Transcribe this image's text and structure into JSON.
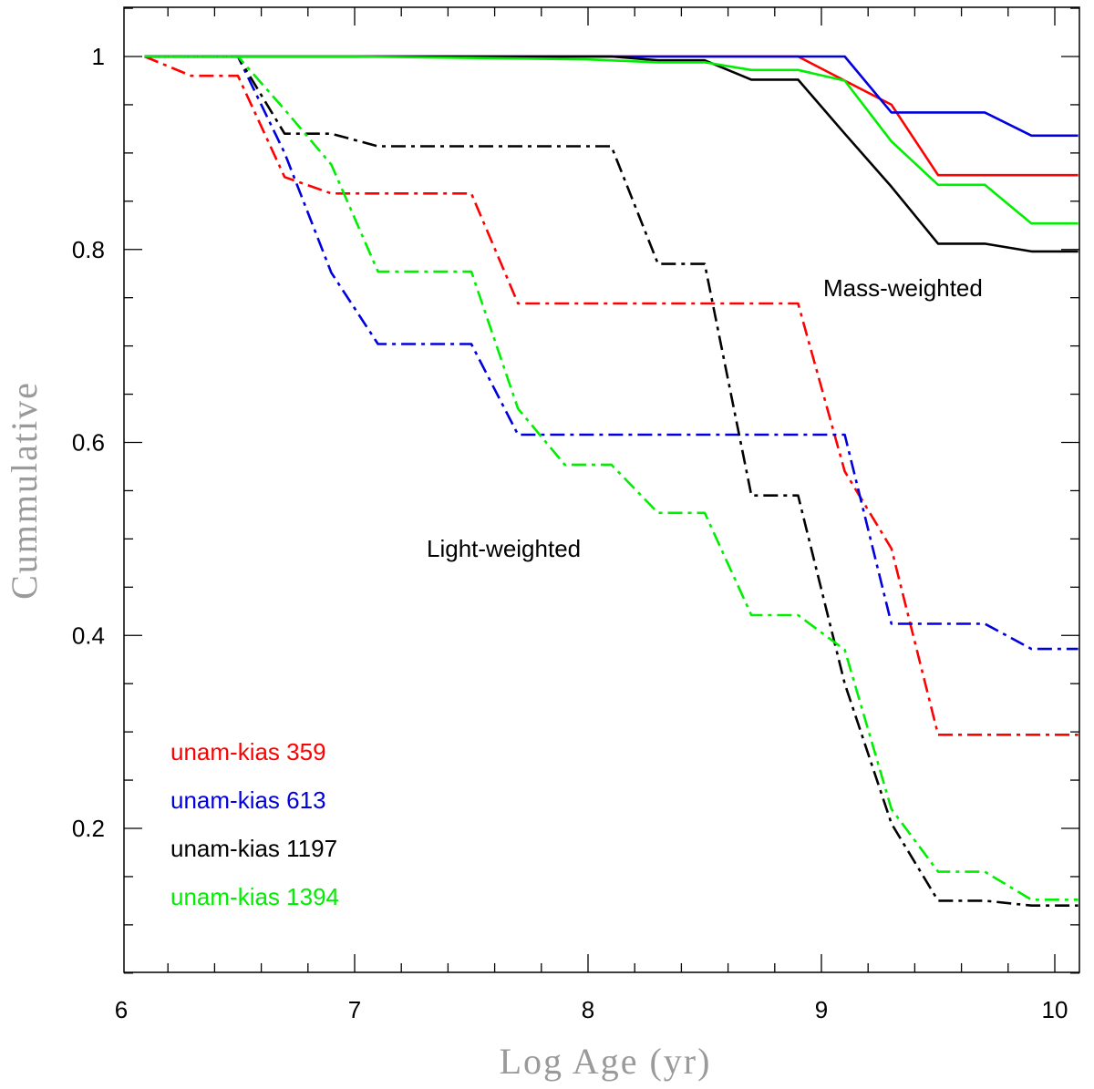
{
  "chart_data": {
    "type": "line",
    "title": "",
    "xlabel": "Log Age (yr)",
    "ylabel": "Cummulative",
    "xlim": [
      6.0,
      10.1
    ],
    "ylim": [
      0.04,
      1.05
    ],
    "x_ticks": [
      6,
      7,
      8,
      9,
      10
    ],
    "x_tick_labels": [
      "6",
      "7",
      "8",
      "9",
      "10"
    ],
    "y_ticks": [
      0.2,
      0.4,
      0.6,
      0.8,
      1.0
    ],
    "y_tick_labels": [
      "0.2",
      "0.4",
      "0.6",
      "0.8",
      "1"
    ],
    "annotations": [
      {
        "id": "mass",
        "text": "Mass-weighted",
        "x": 9.0,
        "y": 0.755
      },
      {
        "id": "light",
        "text": "Light-weighted",
        "x": 7.3,
        "y": 0.485
      }
    ],
    "legend_position": "bottom-left",
    "series": [
      {
        "name": "unam-kias 359",
        "color": "#ff0000",
        "weighting": "mass",
        "style": "solid",
        "x": [
          6.1,
          6.5,
          7.0,
          8.0,
          8.9,
          9.1,
          9.3,
          9.5,
          9.7,
          9.9,
          10.1
        ],
        "y": [
          1.0,
          1.0,
          1.0,
          1.0,
          1.0,
          0.975,
          0.95,
          0.877,
          0.877,
          0.877,
          0.877
        ]
      },
      {
        "name": "unam-kias 613",
        "color": "#0000dd",
        "weighting": "mass",
        "style": "solid",
        "x": [
          6.1,
          6.5,
          7.0,
          8.0,
          9.1,
          9.3,
          9.5,
          9.7,
          9.9,
          10.1
        ],
        "y": [
          1.0,
          1.0,
          1.0,
          1.0,
          1.0,
          0.942,
          0.942,
          0.942,
          0.918,
          0.918
        ]
      },
      {
        "name": "unam-kias 1197",
        "color": "#000000",
        "weighting": "mass",
        "style": "solid",
        "x": [
          6.1,
          6.5,
          7.0,
          8.1,
          8.3,
          8.5,
          8.7,
          8.9,
          9.1,
          9.3,
          9.5,
          9.7,
          9.9,
          10.1
        ],
        "y": [
          1.0,
          1.0,
          1.0,
          1.0,
          0.996,
          0.996,
          0.976,
          0.976,
          0.92,
          0.865,
          0.806,
          0.806,
          0.798,
          0.798
        ]
      },
      {
        "name": "unam-kias 1394",
        "color": "#00ee00",
        "weighting": "mass",
        "style": "solid",
        "x": [
          6.1,
          6.5,
          7.0,
          8.0,
          8.3,
          8.5,
          8.7,
          8.9,
          9.1,
          9.3,
          9.5,
          9.7,
          9.9,
          10.1
        ],
        "y": [
          1.0,
          1.0,
          1.0,
          0.997,
          0.994,
          0.994,
          0.986,
          0.986,
          0.975,
          0.912,
          0.867,
          0.867,
          0.827,
          0.827
        ]
      },
      {
        "name": "unam-kias 359",
        "color": "#ff0000",
        "weighting": "light",
        "style": "dashdot",
        "x": [
          6.1,
          6.3,
          6.5,
          6.7,
          6.9,
          7.1,
          7.3,
          7.5,
          7.7,
          7.9,
          8.1,
          8.3,
          8.5,
          8.7,
          8.9,
          9.1,
          9.3,
          9.5,
          9.7,
          9.9,
          10.1
        ],
        "y": [
          1.0,
          0.98,
          0.98,
          0.875,
          0.858,
          0.858,
          0.858,
          0.858,
          0.744,
          0.744,
          0.744,
          0.744,
          0.744,
          0.744,
          0.744,
          0.57,
          0.49,
          0.297,
          0.297,
          0.297,
          0.297
        ]
      },
      {
        "name": "unam-kias 613",
        "color": "#0000dd",
        "weighting": "light",
        "style": "dashdot",
        "x": [
          6.1,
          6.5,
          6.7,
          6.9,
          7.1,
          7.3,
          7.5,
          7.7,
          7.9,
          8.1,
          8.3,
          8.5,
          8.7,
          8.9,
          9.1,
          9.3,
          9.5,
          9.7,
          9.9,
          10.1
        ],
        "y": [
          1.0,
          1.0,
          0.9,
          0.776,
          0.702,
          0.702,
          0.702,
          0.608,
          0.608,
          0.608,
          0.608,
          0.608,
          0.608,
          0.608,
          0.608,
          0.412,
          0.412,
          0.412,
          0.386,
          0.386
        ]
      },
      {
        "name": "unam-kias 1197",
        "color": "#000000",
        "weighting": "light",
        "style": "dashdot",
        "x": [
          6.1,
          6.5,
          6.7,
          6.9,
          7.1,
          7.3,
          7.5,
          7.7,
          7.9,
          8.1,
          8.3,
          8.5,
          8.7,
          8.9,
          9.1,
          9.3,
          9.5,
          9.7,
          9.9,
          10.1
        ],
        "y": [
          1.0,
          1.0,
          0.92,
          0.92,
          0.907,
          0.907,
          0.907,
          0.907,
          0.907,
          0.907,
          0.785,
          0.785,
          0.545,
          0.545,
          0.35,
          0.205,
          0.125,
          0.125,
          0.12,
          0.12
        ]
      },
      {
        "name": "unam-kias 1394",
        "color": "#00ee00",
        "weighting": "light",
        "style": "dashdot",
        "x": [
          6.1,
          6.5,
          6.7,
          6.9,
          7.1,
          7.3,
          7.5,
          7.7,
          7.9,
          8.1,
          8.3,
          8.5,
          8.7,
          8.9,
          9.1,
          9.3,
          9.5,
          9.7,
          9.9,
          10.1
        ],
        "y": [
          1.0,
          1.0,
          0.945,
          0.888,
          0.777,
          0.777,
          0.777,
          0.635,
          0.577,
          0.577,
          0.527,
          0.527,
          0.421,
          0.421,
          0.385,
          0.22,
          0.155,
          0.155,
          0.126,
          0.126
        ]
      }
    ],
    "legend": [
      {
        "label": "unam-kias 359",
        "color": "#ff0000"
      },
      {
        "label": "unam-kias 613",
        "color": "#0000dd"
      },
      {
        "label": "unam-kias 1197",
        "color": "#000000"
      },
      {
        "label": "unam-kias 1394",
        "color": "#00ee00"
      }
    ]
  }
}
